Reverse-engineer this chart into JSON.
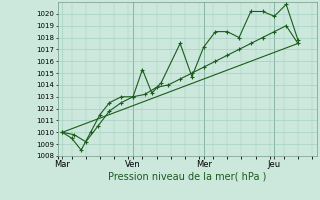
{
  "xlabel": "Pression niveau de la mer( hPa )",
  "bg_color": "#cce8dd",
  "grid_color": "#99ccbb",
  "line_color": "#1a5c1a",
  "vline_color": "#779988",
  "ylim": [
    1008,
    1021
  ],
  "yticks": [
    1008,
    1009,
    1010,
    1011,
    1012,
    1013,
    1014,
    1015,
    1016,
    1017,
    1018,
    1019,
    1020
  ],
  "xtick_labels": [
    "Mar",
    "Ven",
    "Mer",
    "Jeu"
  ],
  "xtick_positions": [
    0,
    30,
    60,
    90
  ],
  "xlim": [
    -2,
    108
  ],
  "series1_x": [
    0,
    4,
    8,
    12,
    16,
    20,
    25,
    30,
    34,
    38,
    42,
    50,
    55,
    60,
    65,
    70,
    75,
    80,
    85,
    90,
    95,
    100
  ],
  "series1_y": [
    1010.0,
    1009.5,
    1008.5,
    1010.0,
    1011.5,
    1012.5,
    1013.0,
    1013.0,
    1015.3,
    1013.3,
    1014.2,
    1017.5,
    1014.7,
    1017.2,
    1018.5,
    1018.5,
    1018.0,
    1020.2,
    1020.2,
    1019.8,
    1020.8,
    1017.8
  ],
  "series2_x": [
    0,
    5,
    10,
    15,
    20,
    25,
    30,
    35,
    40,
    45,
    50,
    55,
    60,
    65,
    70,
    75,
    80,
    85,
    90,
    95,
    100
  ],
  "series2_y": [
    1010.0,
    1009.8,
    1009.2,
    1010.5,
    1011.8,
    1012.5,
    1013.0,
    1013.2,
    1013.8,
    1014.0,
    1014.5,
    1015.0,
    1015.5,
    1016.0,
    1016.5,
    1017.0,
    1017.5,
    1018.0,
    1018.5,
    1019.0,
    1017.5
  ],
  "series3_x": [
    0,
    100
  ],
  "series3_y": [
    1010.0,
    1017.5
  ],
  "ytick_fontsize": 5.0,
  "xtick_fontsize": 6.0,
  "xlabel_fontsize": 7.0,
  "figsize": [
    3.2,
    2.0
  ],
  "dpi": 100
}
